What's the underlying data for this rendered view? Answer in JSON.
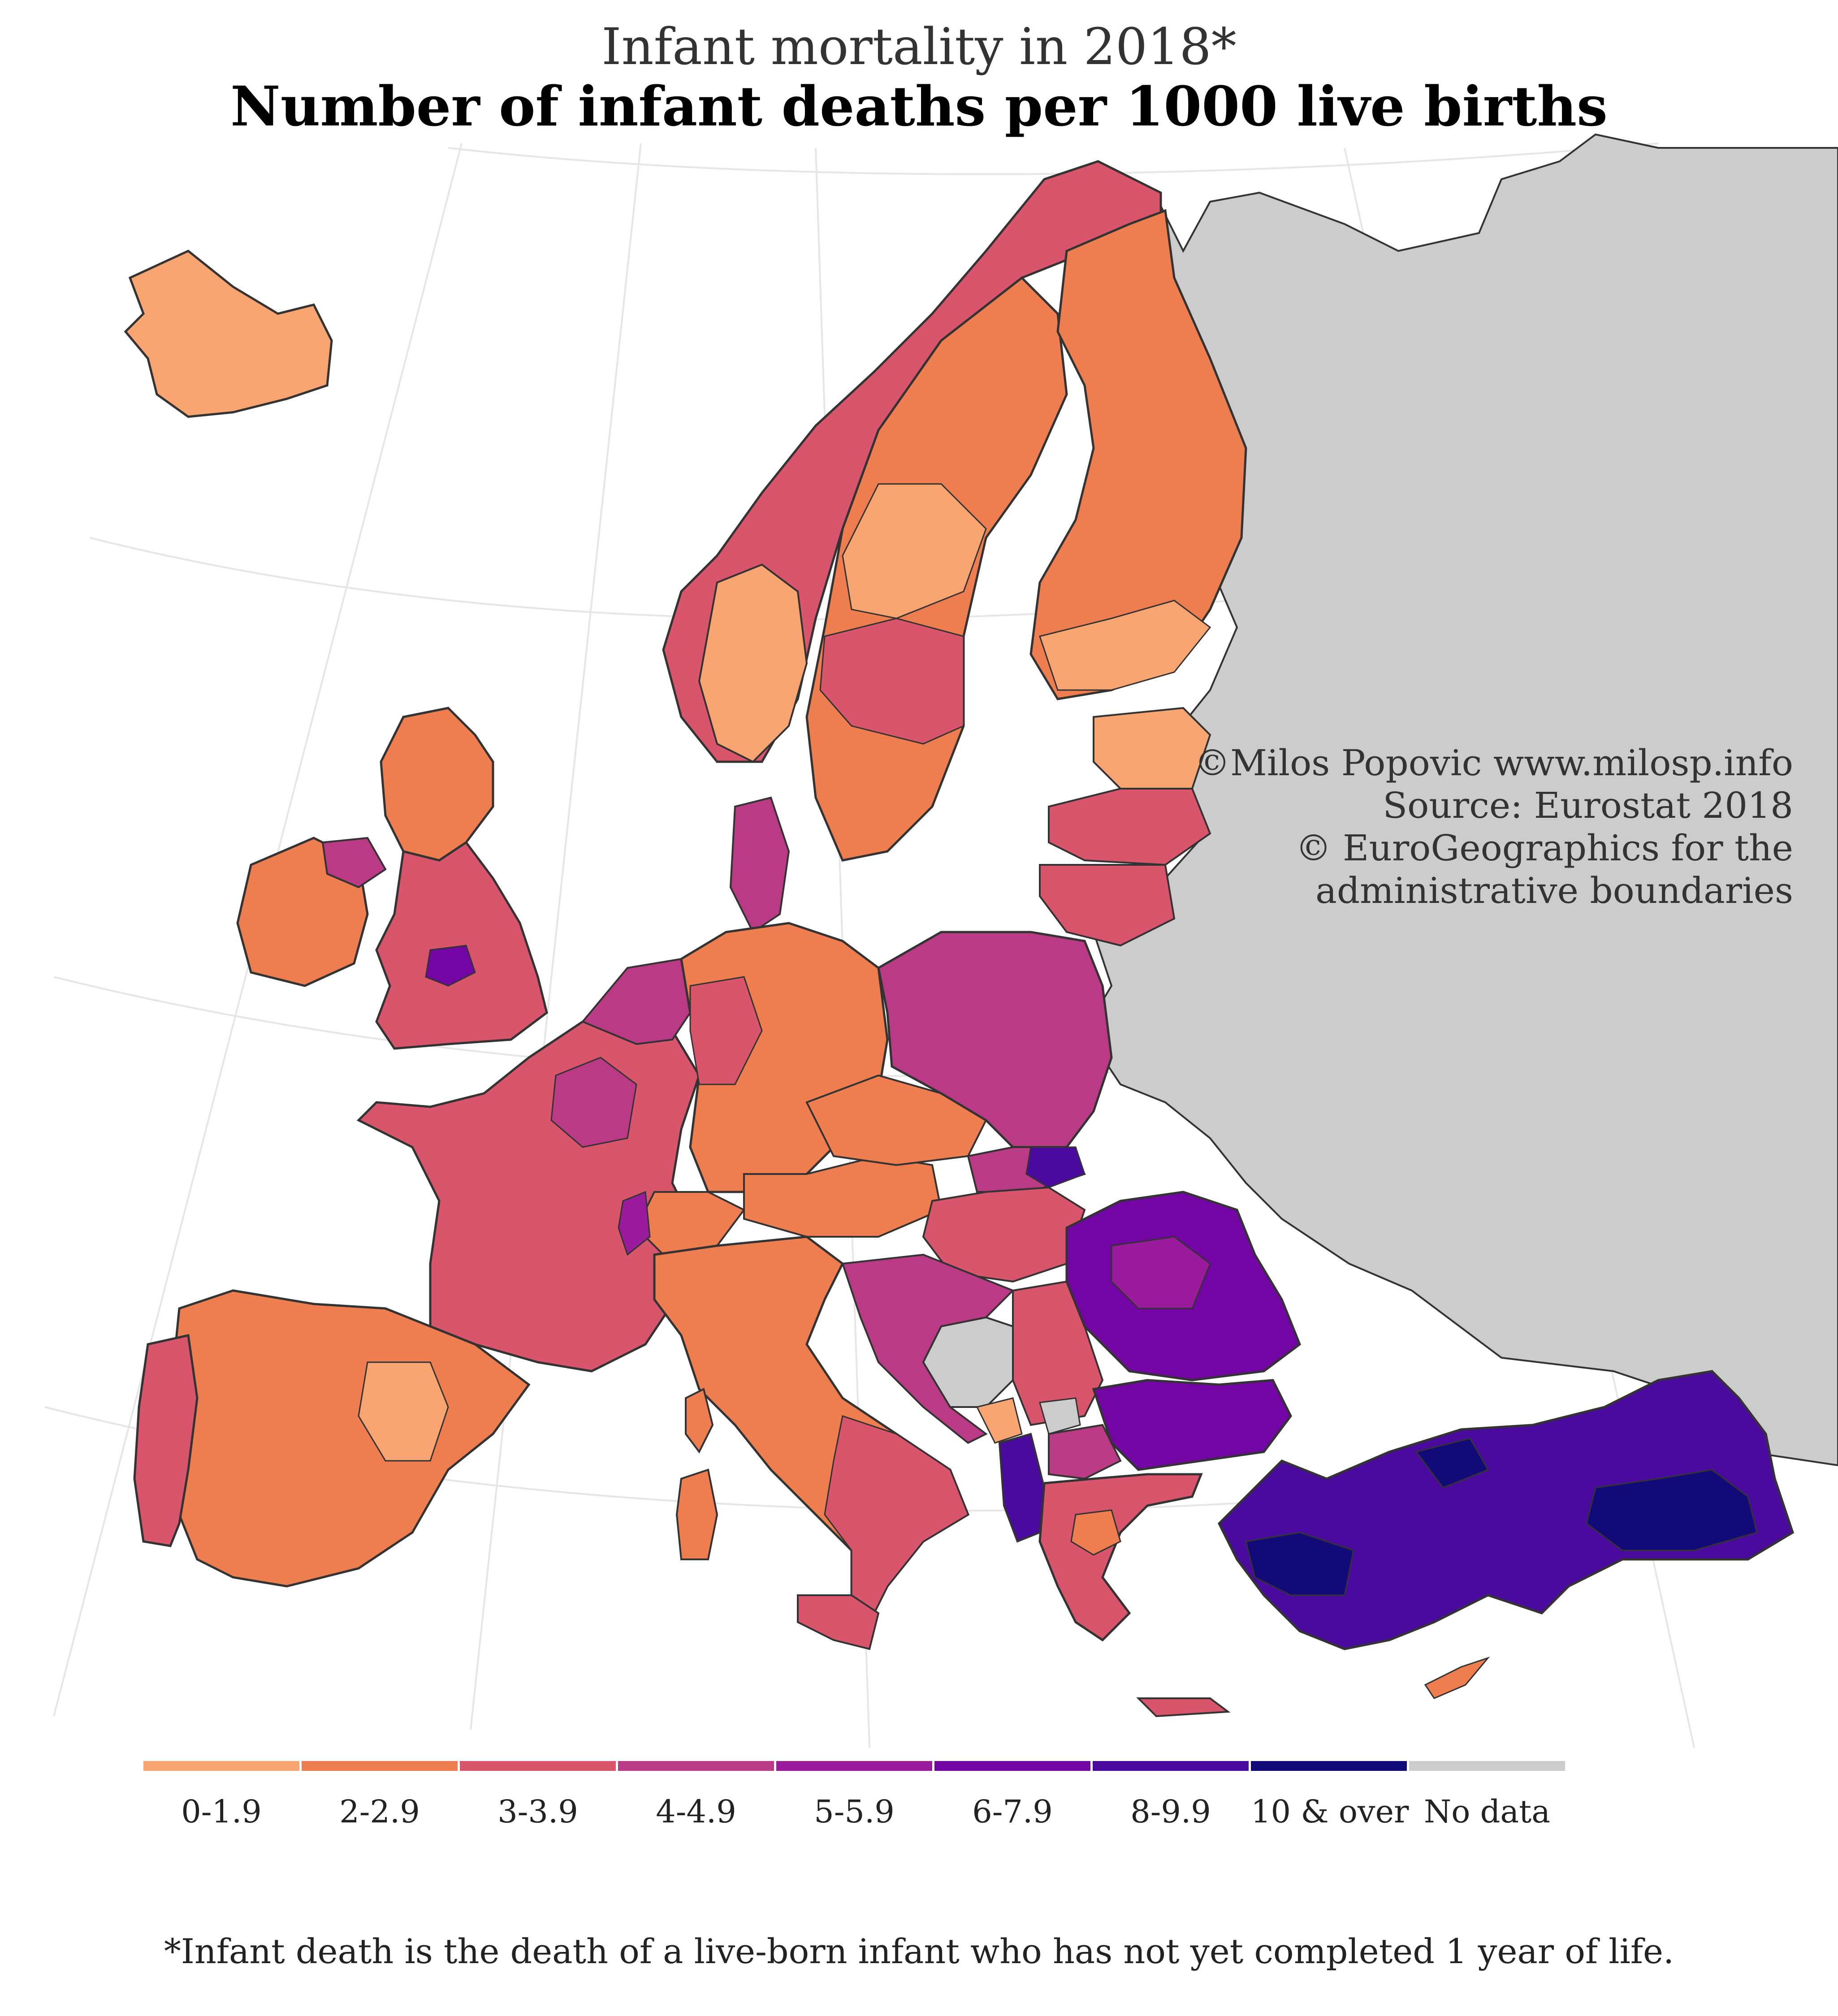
{
  "title": {
    "subtitle": "Infant mortality in 2018*",
    "main": "Number of infant deaths per 1000 live births"
  },
  "credits": {
    "line1": "©Milos Popovic www.milosp.info",
    "line2": "Source: Eurostat 2018",
    "line3": "© EuroGeographics for the",
    "line4": "administrative boundaries"
  },
  "legend": {
    "items": [
      {
        "label": "0-1.9",
        "color": "#f9a571"
      },
      {
        "label": "2-2.9",
        "color": "#ee7e4f"
      },
      {
        "label": "3-3.9",
        "color": "#d9556b"
      },
      {
        "label": "4-4.9",
        "color": "#bb3a86"
      },
      {
        "label": "5-5.9",
        "color": "#9a1b9c"
      },
      {
        "label": "6-7.9",
        "color": "#7305a5"
      },
      {
        "label": "8-9.9",
        "color": "#4b0a9e"
      },
      {
        "label": "10 & over",
        "color": "#120a78"
      },
      {
        "label": "No data",
        "color": "#cccccc"
      }
    ]
  },
  "footnote": "*Infant death is the death of a live-born infant who has not yet completed 1 year of life.",
  "map_colors": {
    "outline": "#333333",
    "graticule": "#e6e6e6",
    "inner_border": "#f5d7cf"
  }
}
